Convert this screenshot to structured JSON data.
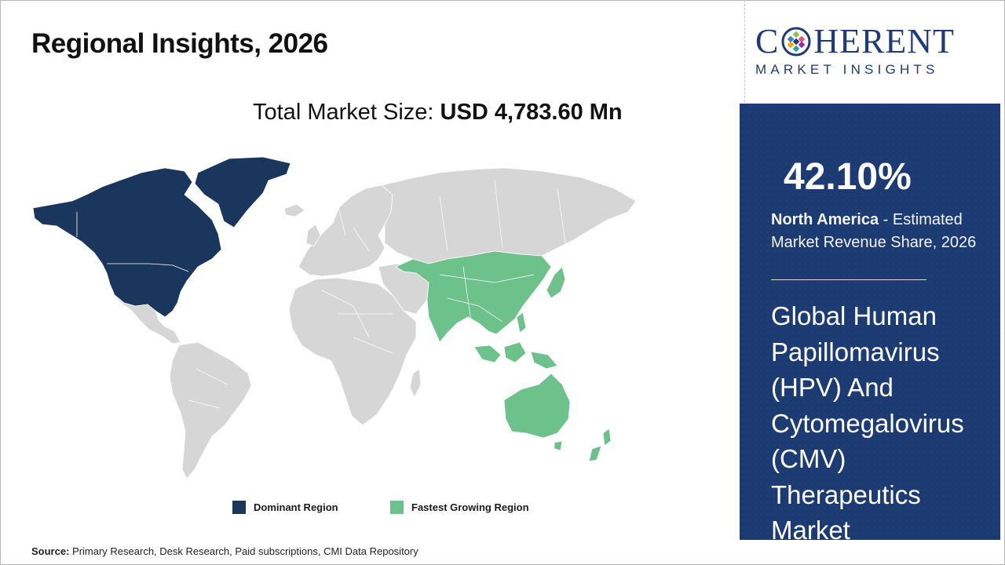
{
  "header": {
    "title": "Regional Insights, 2026",
    "market_size_label": "Total Market Size:",
    "market_size_value": "USD 4,783.60 Mn"
  },
  "logo": {
    "word_before": "C",
    "word_after": "HERENT",
    "subtitle": "MARKET INSIGHTS"
  },
  "map": {
    "highlights": [
      {
        "region": "North America",
        "category": "Dominant Region",
        "color": "#1b365d"
      },
      {
        "region": "Asia Pacific",
        "category": "Fastest Growing Region",
        "color": "#6cc28a"
      }
    ],
    "base_color": "#d6d6d6"
  },
  "legend": {
    "items": [
      {
        "label": "Dominant Region",
        "color": "#1b365d"
      },
      {
        "label": "Fastest Growing Region",
        "color": "#6cc28a"
      }
    ]
  },
  "source": {
    "label": "Source:",
    "text": "Primary Research, Desk Research, Paid subscriptions, CMI Data Repository"
  },
  "panel": {
    "percentage": "42.10%",
    "region": "North America",
    "description": "- Estimated Market Revenue Share, 2026",
    "market_name": "Global Human Papillomavirus (HPV) And Cytomegalovirus (CMV) Therapeutics Market",
    "background": "#1d3b73"
  }
}
